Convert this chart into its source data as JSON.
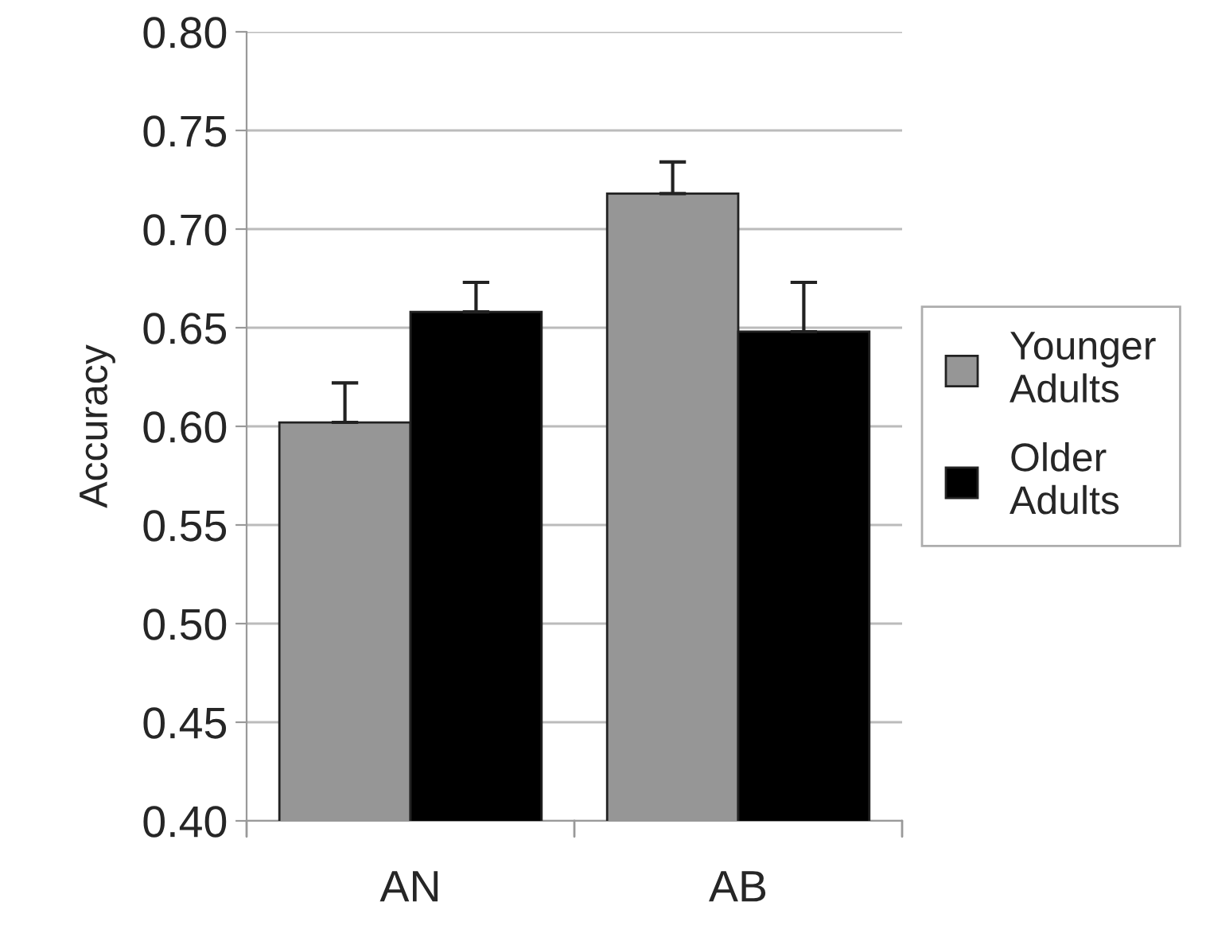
{
  "chart_data": {
    "type": "bar",
    "ylabel": "Accuracy",
    "categories": [
      "AN",
      "AB"
    ],
    "series": [
      {
        "name": "Younger Adults",
        "color": "#969696",
        "values": [
          0.602,
          0.718
        ],
        "errors": [
          [
            0.602,
            0.622
          ],
          [
            0.718,
            0.734
          ]
        ]
      },
      {
        "name": "Older Adults",
        "color": "#000000",
        "values": [
          0.658,
          0.648
        ],
        "errors": [
          [
            0.658,
            0.673
          ],
          [
            0.648,
            0.673
          ]
        ]
      }
    ],
    "ylim": [
      0.4,
      0.8
    ],
    "yticks": [
      {
        "value": 0.4,
        "label": "0.40"
      },
      {
        "value": 0.45,
        "label": "0.45"
      },
      {
        "value": 0.5,
        "label": "0.50"
      },
      {
        "value": 0.55,
        "label": "0.55"
      },
      {
        "value": 0.6,
        "label": "0.60"
      },
      {
        "value": 0.65,
        "label": "0.65"
      },
      {
        "value": 0.7,
        "label": "0.70"
      },
      {
        "value": 0.75,
        "label": "0.75"
      },
      {
        "value": 0.8,
        "label": "0.80"
      }
    ],
    "grid": "y",
    "legend": "right"
  }
}
